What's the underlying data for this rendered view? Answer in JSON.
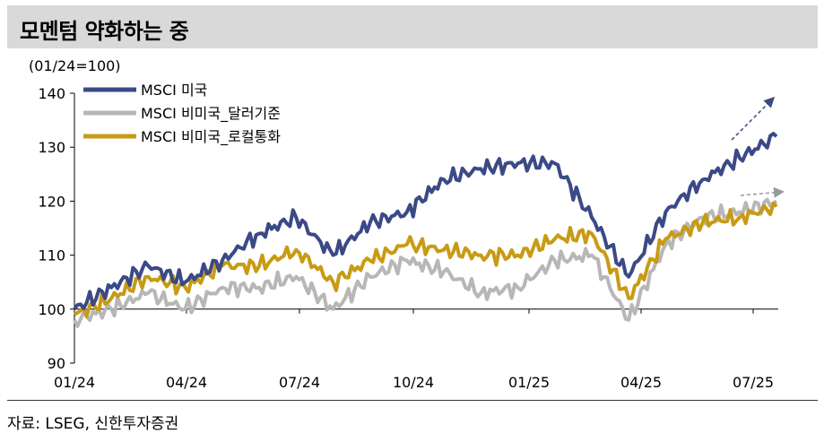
{
  "header": {
    "title": "모멘텀 약화하는 중"
  },
  "unit_label": "(01/24=100)",
  "source": "자료: LSEG, 신한투자증권",
  "colors": {
    "us": "#3b4a86",
    "nonus_usd": "#b7b7b7",
    "nonus_local": "#c89b14",
    "arrow_us": "#3b4a86",
    "arrow_gray": "#9a9a9a"
  },
  "chart_data": {
    "type": "line",
    "title": "",
    "xlabel": "",
    "ylabel": "",
    "ylim": [
      90,
      140
    ],
    "yticks": [
      90,
      100,
      110,
      120,
      130,
      140
    ],
    "xticks": [
      "01/24",
      "04/24",
      "07/24",
      "10/24",
      "01/25",
      "04/25",
      "07/25"
    ],
    "grid": false,
    "legend": "top-left",
    "series": [
      {
        "name": "MSCI 미국",
        "x": [
          "01/24",
          "02/24",
          "03/24",
          "04/24",
          "05/24",
          "06/24",
          "07/24",
          "08/24",
          "09/24",
          "10/24",
          "11/24",
          "12/24",
          "01/25",
          "02/25",
          "03/25",
          "04/25",
          "05/25",
          "06/25",
          "07/25",
          "08/25"
        ],
        "values": [
          100,
          104,
          108,
          105,
          109,
          114,
          117,
          110,
          116,
          118,
          124,
          126,
          127,
          127,
          117,
          106,
          118,
          124,
          128,
          132
        ]
      },
      {
        "name": "MSCI 비미국_달러기준",
        "x": [
          "01/24",
          "02/24",
          "03/24",
          "04/24",
          "05/24",
          "06/24",
          "07/24",
          "08/24",
          "09/24",
          "10/24",
          "11/24",
          "12/24",
          "01/25",
          "02/25",
          "03/25",
          "04/25",
          "05/25",
          "06/25",
          "07/25",
          "08/25"
        ],
        "values": [
          98,
          100,
          103,
          100,
          104,
          104,
          106,
          100,
          106,
          109,
          107,
          103,
          104,
          109,
          110,
          98,
          112,
          117,
          118,
          120
        ]
      },
      {
        "name": "MSCI 비미국_로컬통화",
        "x": [
          "01/24",
          "02/24",
          "03/24",
          "04/24",
          "05/24",
          "06/24",
          "07/24",
          "08/24",
          "09/24",
          "10/24",
          "11/24",
          "12/24",
          "01/25",
          "02/25",
          "03/25",
          "04/25",
          "05/25",
          "06/25",
          "07/25",
          "08/25"
        ],
        "values": [
          99,
          102,
          106,
          104,
          108,
          108,
          111,
          105,
          109,
          112,
          111,
          110,
          110,
          113,
          114,
          102,
          113,
          116,
          117,
          119
        ]
      }
    ],
    "annotations": [
      "up-arrow-us",
      "up-arrow-nonus"
    ]
  }
}
